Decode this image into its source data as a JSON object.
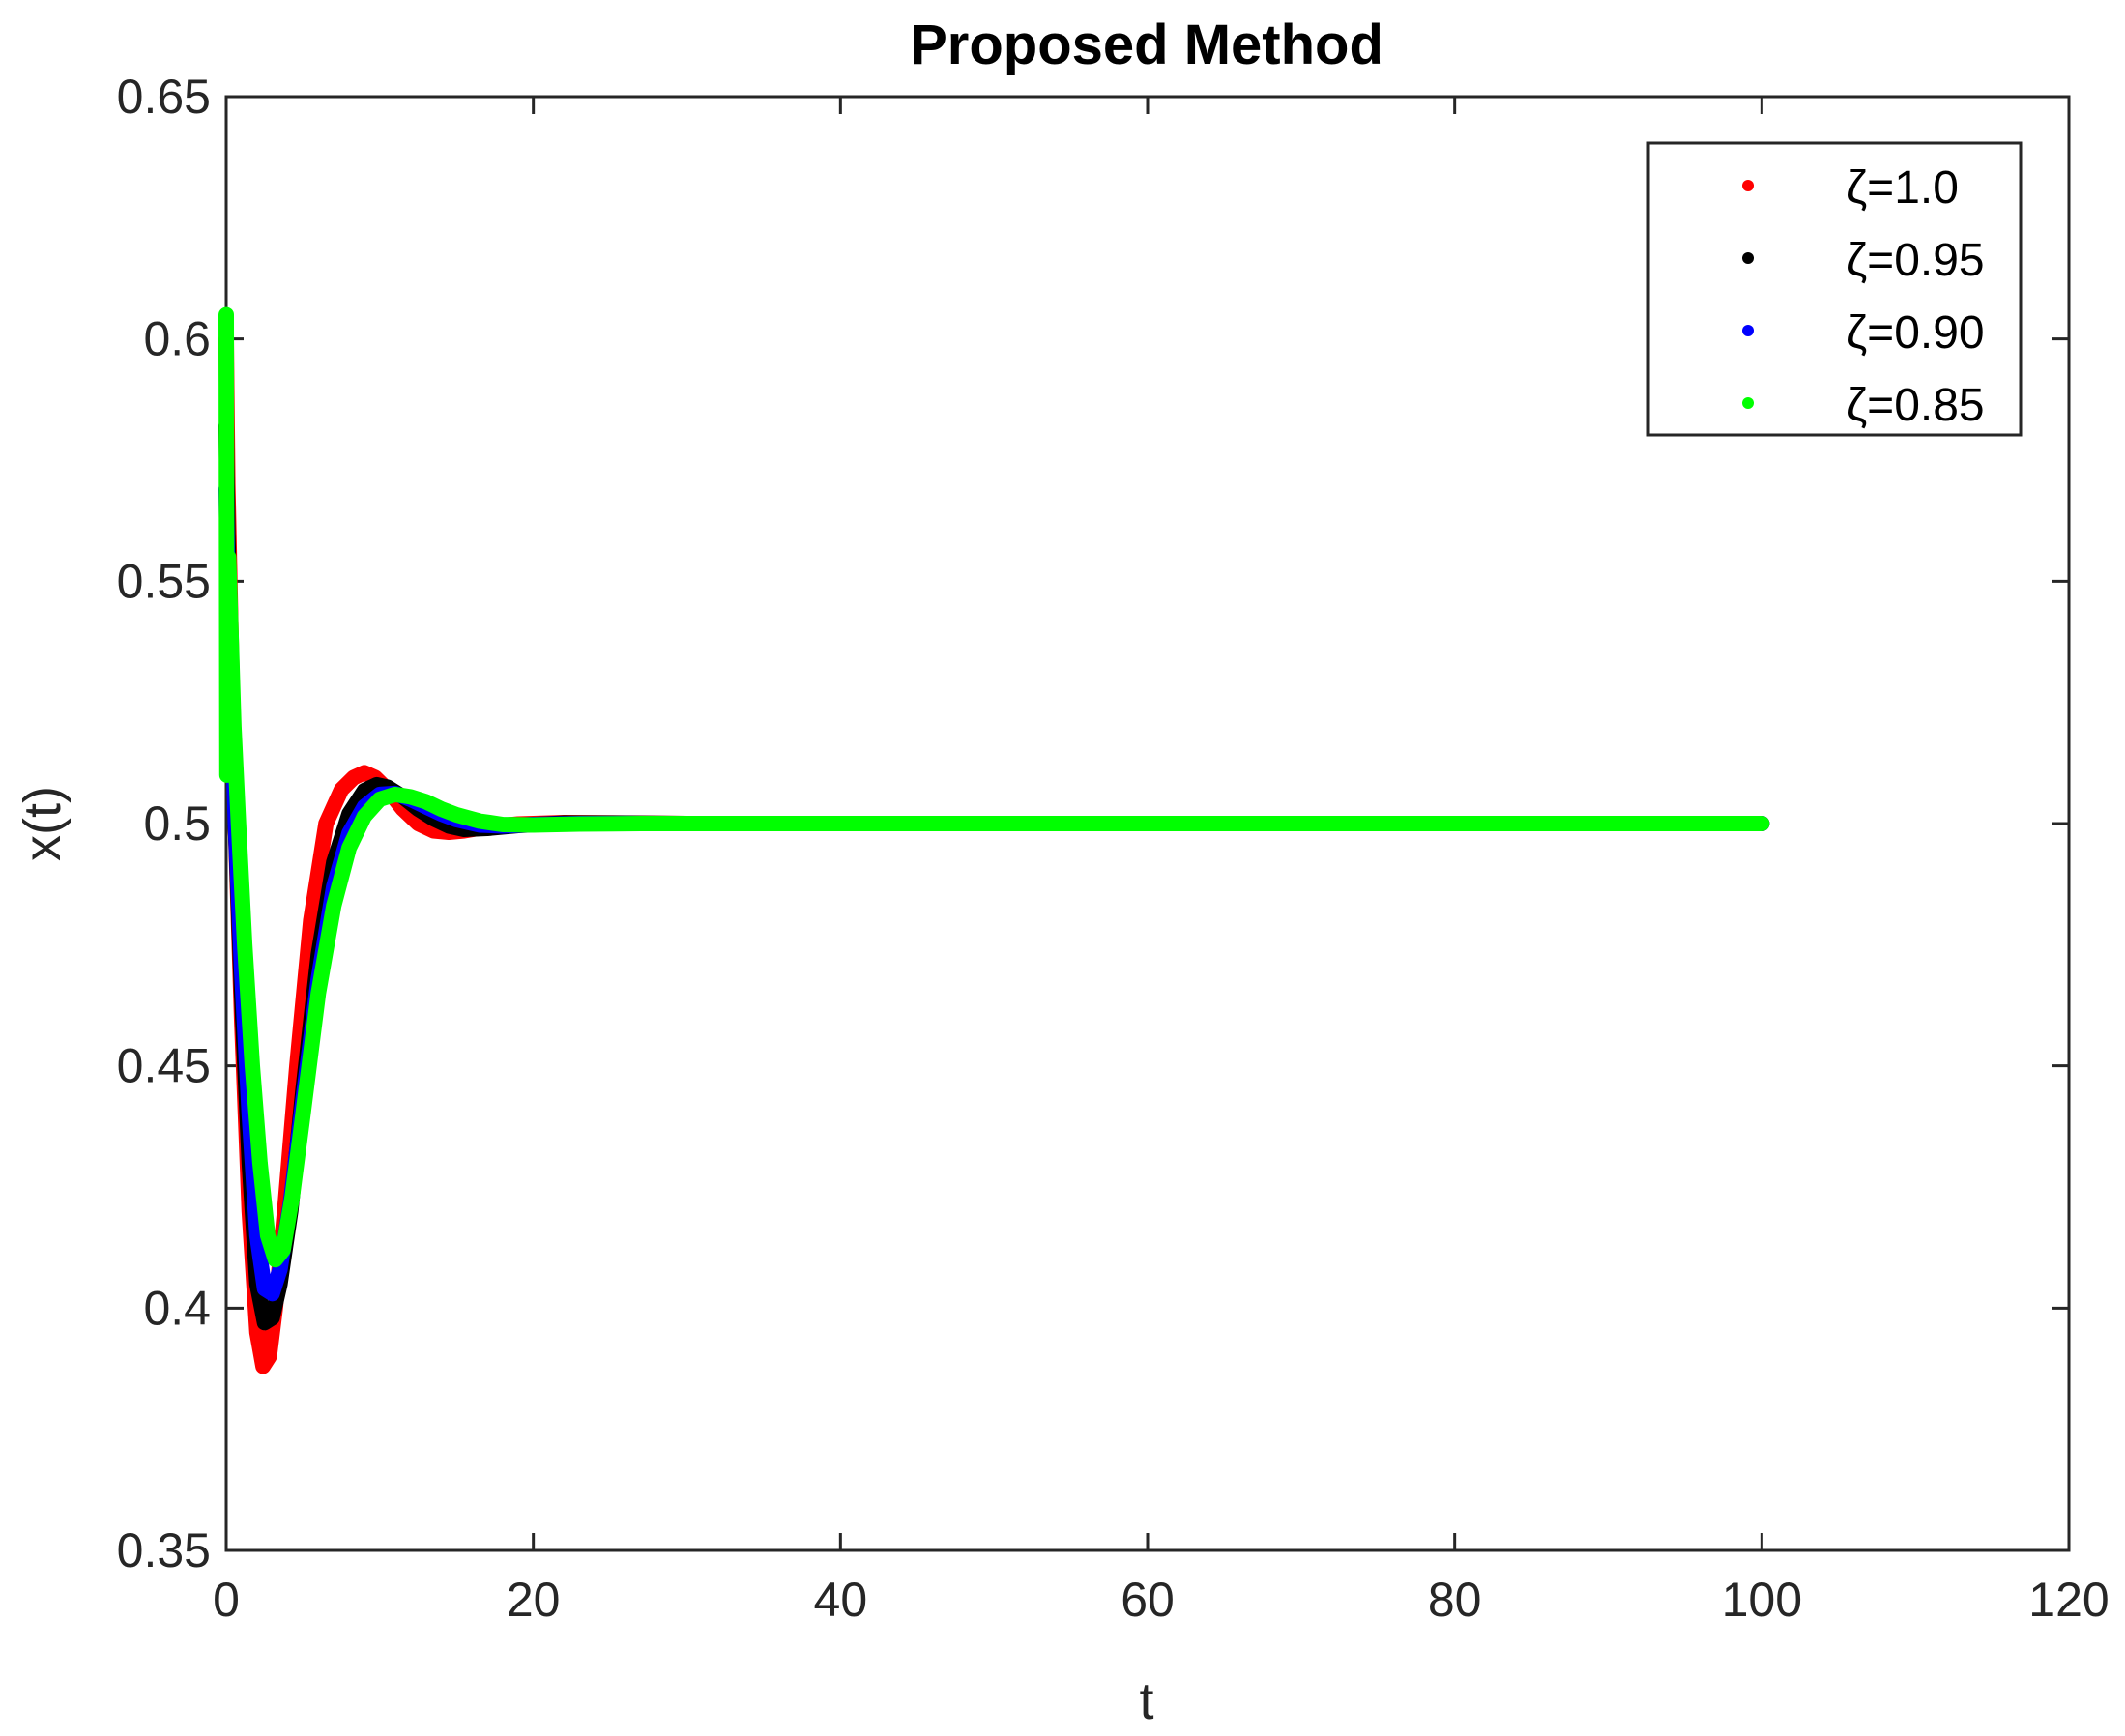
{
  "chart_data": {
    "type": "scatter",
    "title": "Proposed Method",
    "xlabel": "t",
    "ylabel": "x(t)",
    "xlim": [
      0,
      120
    ],
    "ylim": [
      0.35,
      0.65
    ],
    "xticks": [
      0,
      20,
      40,
      60,
      80,
      100,
      120
    ],
    "yticks": [
      0.35,
      0.4,
      0.45,
      0.5,
      0.55,
      0.6,
      0.65
    ],
    "xtick_labels": [
      "0",
      "20",
      "40",
      "60",
      "80",
      "100",
      "120"
    ],
    "ytick_labels": [
      "0.35",
      "0.4",
      "0.45",
      "0.5",
      "0.55",
      "0.6",
      "0.65"
    ],
    "grid": false,
    "legend_position": "top-right",
    "series": [
      {
        "name": "ζ=1.0",
        "color": "#ff0000",
        "x": [
          0,
          0.1,
          0.3,
          0.6,
          1.0,
          1.5,
          2.0,
          2.4,
          2.8,
          3.2,
          3.8,
          4.6,
          5.5,
          6.5,
          7.5,
          8.3,
          9.0,
          9.7,
          10.5,
          11.5,
          12.5,
          13.5,
          14.5,
          15.5,
          17.0,
          19.0,
          22.0,
          26.0,
          30.0,
          40.0,
          60.0,
          80.0,
          100.0
        ],
        "y": [
          0.6,
          0.57,
          0.54,
          0.5,
          0.46,
          0.42,
          0.395,
          0.388,
          0.39,
          0.4,
          0.42,
          0.45,
          0.48,
          0.5,
          0.507,
          0.5095,
          0.5105,
          0.5095,
          0.507,
          0.503,
          0.5,
          0.4985,
          0.4982,
          0.4985,
          0.4993,
          0.4999,
          0.5002,
          0.5001,
          0.5,
          0.5,
          0.5,
          0.5,
          0.5
        ]
      },
      {
        "name": "ζ=0.95",
        "color": "#000000",
        "x": [
          0,
          0.1,
          0.3,
          0.6,
          1.0,
          1.5,
          2.0,
          2.5,
          3.0,
          3.5,
          4.2,
          5.0,
          6.0,
          7.0,
          8.0,
          9.0,
          9.8,
          10.5,
          11.5,
          12.5,
          13.5,
          14.5,
          15.5,
          17.0,
          19.0,
          22.0,
          26.0,
          30.0,
          40.0,
          60.0,
          80.0,
          100.0
        ],
        "y": [
          0.582,
          0.56,
          0.535,
          0.5,
          0.465,
          0.43,
          0.405,
          0.397,
          0.398,
          0.405,
          0.42,
          0.445,
          0.473,
          0.492,
          0.502,
          0.5068,
          0.508,
          0.5075,
          0.5055,
          0.503,
          0.501,
          0.4995,
          0.4988,
          0.499,
          0.4996,
          0.5001,
          0.5001,
          0.5,
          0.5,
          0.5,
          0.5,
          0.5
        ]
      },
      {
        "name": "ζ=0.90",
        "color": "#0000ff",
        "x": [
          0,
          0.1,
          0.3,
          0.6,
          1.0,
          1.5,
          2.0,
          2.5,
          3.0,
          3.5,
          4.2,
          5.0,
          6.0,
          7.0,
          8.0,
          9.0,
          10.0,
          11.0,
          12.0,
          13.0,
          14.0,
          15.0,
          16.5,
          18.0,
          20.0,
          23.0,
          27.0,
          30.0,
          40.0,
          60.0,
          80.0,
          100.0
        ],
        "y": [
          0.569,
          0.55,
          0.53,
          0.5,
          0.47,
          0.44,
          0.415,
          0.404,
          0.403,
          0.408,
          0.422,
          0.443,
          0.468,
          0.487,
          0.498,
          0.5035,
          0.506,
          0.5062,
          0.505,
          0.5035,
          0.502,
          0.5008,
          0.4997,
          0.4995,
          0.4998,
          0.5,
          0.5,
          0.5,
          0.5,
          0.5,
          0.5,
          0.5
        ]
      },
      {
        "name": "ζ=0.85",
        "color": "#00ff00",
        "x": [
          0,
          0.05,
          0.15,
          0.3,
          0.5,
          0.8,
          1.2,
          1.7,
          2.2,
          2.7,
          3.2,
          3.7,
          4.3,
          5.0,
          6.0,
          7.0,
          8.0,
          9.0,
          10.0,
          11.0,
          12.0,
          13.0,
          14.0,
          15.0,
          16.5,
          18.0,
          20.0,
          23.0,
          27.0,
          30.0,
          40.0,
          60.0,
          80.0,
          100.0
        ],
        "y": [
          0.605,
          0.51,
          0.555,
          0.54,
          0.52,
          0.5,
          0.475,
          0.45,
          0.43,
          0.415,
          0.41,
          0.412,
          0.423,
          0.44,
          0.465,
          0.483,
          0.495,
          0.5015,
          0.505,
          0.506,
          0.5055,
          0.5045,
          0.503,
          0.5018,
          0.5005,
          0.4998,
          0.4997,
          0.4999,
          0.5,
          0.5,
          0.5,
          0.5,
          0.5,
          0.5
        ]
      }
    ]
  }
}
